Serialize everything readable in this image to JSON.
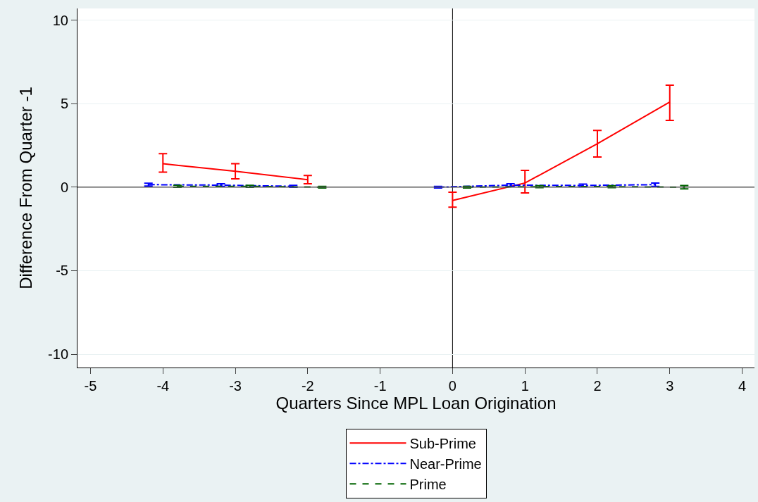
{
  "chart_data": {
    "type": "line",
    "xlabel": "Quarters Since MPL Loan Origination",
    "ylabel": "Difference From Quarter -1",
    "xlim": [
      -5.18,
      4.17
    ],
    "xticks": [
      -5,
      -4,
      -3,
      -2,
      -1,
      0,
      1,
      2,
      3,
      4
    ],
    "ylim": [
      -10.8,
      10.7
    ],
    "yticks": [
      -10,
      -5,
      0,
      5,
      10
    ],
    "grid": "y",
    "legend": "bottom",
    "marker": "none",
    "ref_lines": [
      {
        "axis": "x",
        "value": 0,
        "color": "#000000"
      },
      {
        "axis": "y",
        "value": 0,
        "color": "#555555"
      }
    ],
    "series": [
      {
        "name": "Sub-Prime",
        "color": "#ff0000",
        "line_style": "solid",
        "x": [
          -4,
          -3,
          -2,
          null,
          0,
          1,
          2,
          3
        ],
        "values": [
          1.4,
          0.95,
          0.45,
          null,
          -0.8,
          0.25,
          2.6,
          5.1
        ],
        "errors": [
          [
            0.9,
            2.0
          ],
          [
            0.5,
            1.4
          ],
          [
            0.2,
            0.7
          ],
          null,
          [
            -1.2,
            -0.3
          ],
          [
            -0.35,
            1.0
          ],
          [
            1.8,
            3.4
          ],
          [
            4.0,
            6.1
          ]
        ]
      },
      {
        "name": "Near-Prime",
        "color": "#0000ff",
        "line_style": "dashdot",
        "x": [
          -4.2,
          -3.2,
          -2.2,
          null,
          -0.2,
          0.8,
          1.8,
          2.8
        ],
        "values": [
          0.15,
          0.12,
          0.05,
          null,
          0.0,
          0.12,
          0.1,
          0.15
        ],
        "errors": [
          0.08,
          0.08,
          0.06,
          null,
          0.05,
          0.08,
          0.08,
          0.1
        ]
      },
      {
        "name": "Prime",
        "color": "#006400",
        "line_style": "dashed",
        "x": [
          -3.8,
          -2.8,
          -1.8,
          null,
          0.2,
          1.2,
          2.2,
          3.2
        ],
        "values": [
          0.05,
          0.05,
          0.0,
          null,
          0.0,
          0.03,
          0.03,
          0.0
        ],
        "errors": [
          0.06,
          0.06,
          0.05,
          null,
          0.05,
          0.06,
          0.06,
          0.1
        ]
      }
    ]
  }
}
